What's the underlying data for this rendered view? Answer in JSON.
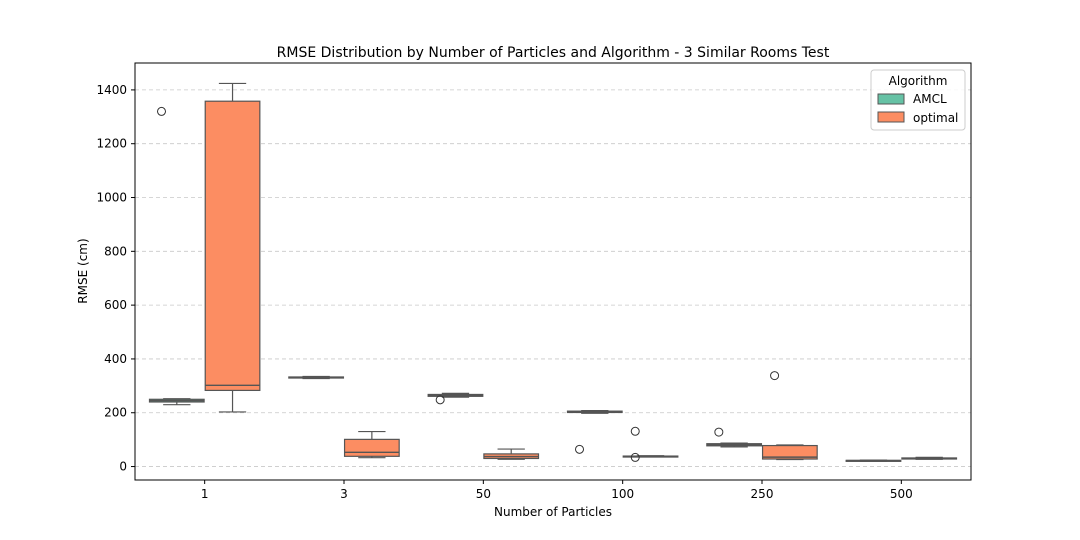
{
  "chart_data": {
    "type": "box",
    "title": "RMSE Distribution by Number of Particles and Algorithm - 3 Similar Rooms Test",
    "xlabel": "Number of Particles",
    "ylabel": "RMSE (cm)",
    "categories": [
      "1",
      "3",
      "50",
      "100",
      "250",
      "500"
    ],
    "yticks": [
      0,
      200,
      400,
      600,
      800,
      1000,
      1200,
      1400
    ],
    "ylim": [
      -50,
      1500
    ],
    "grid": "y-dashed",
    "legend": {
      "title": "Algorithm",
      "position": "top-right"
    },
    "series": [
      {
        "name": "AMCL",
        "color": "#66c2a5",
        "boxes": [
          {
            "category": "1",
            "whisker_low": 230,
            "q1": 240,
            "median": 245,
            "q3": 250,
            "whisker_high": 252,
            "outliers": [
              1320
            ]
          },
          {
            "category": "3",
            "whisker_low": 327,
            "q1": 329,
            "median": 331,
            "q3": 333,
            "whisker_high": 335,
            "outliers": []
          },
          {
            "category": "50",
            "whisker_low": 258,
            "q1": 261,
            "median": 264,
            "q3": 268,
            "whisker_high": 272,
            "outliers": [
              248
            ]
          },
          {
            "category": "100",
            "whisker_low": 198,
            "q1": 201,
            "median": 203,
            "q3": 206,
            "whisker_high": 208,
            "outliers": [
              64
            ]
          },
          {
            "category": "250",
            "whisker_low": 73,
            "q1": 77,
            "median": 81,
            "q3": 85,
            "whisker_high": 87,
            "outliers": [
              128
            ]
          },
          {
            "category": "500",
            "whisker_low": 20,
            "q1": 21,
            "median": 22,
            "q3": 23,
            "whisker_high": 24,
            "outliers": []
          }
        ]
      },
      {
        "name": "optimal",
        "color": "#fc8d62",
        "boxes": [
          {
            "category": "1",
            "whisker_low": 203,
            "q1": 283,
            "median": 302,
            "q3": 1358,
            "whisker_high": 1424,
            "outliers": []
          },
          {
            "category": "3",
            "whisker_low": 33,
            "q1": 38,
            "median": 53,
            "q3": 101,
            "whisker_high": 130,
            "outliers": []
          },
          {
            "category": "50",
            "whisker_low": 27,
            "q1": 30,
            "median": 37,
            "q3": 47,
            "whisker_high": 65,
            "outliers": []
          },
          {
            "category": "100",
            "whisker_low": 36,
            "q1": 37,
            "median": 38,
            "q3": 39,
            "whisker_high": 40,
            "outliers": [
              131,
              34
            ]
          },
          {
            "category": "250",
            "whisker_low": 26,
            "q1": 28,
            "median": 35,
            "q3": 78,
            "whisker_high": 80,
            "outliers": [
              338
            ]
          },
          {
            "category": "500",
            "whisker_low": 27,
            "q1": 28,
            "median": 30,
            "q3": 32,
            "whisker_high": 34,
            "outliers": []
          }
        ]
      }
    ]
  }
}
